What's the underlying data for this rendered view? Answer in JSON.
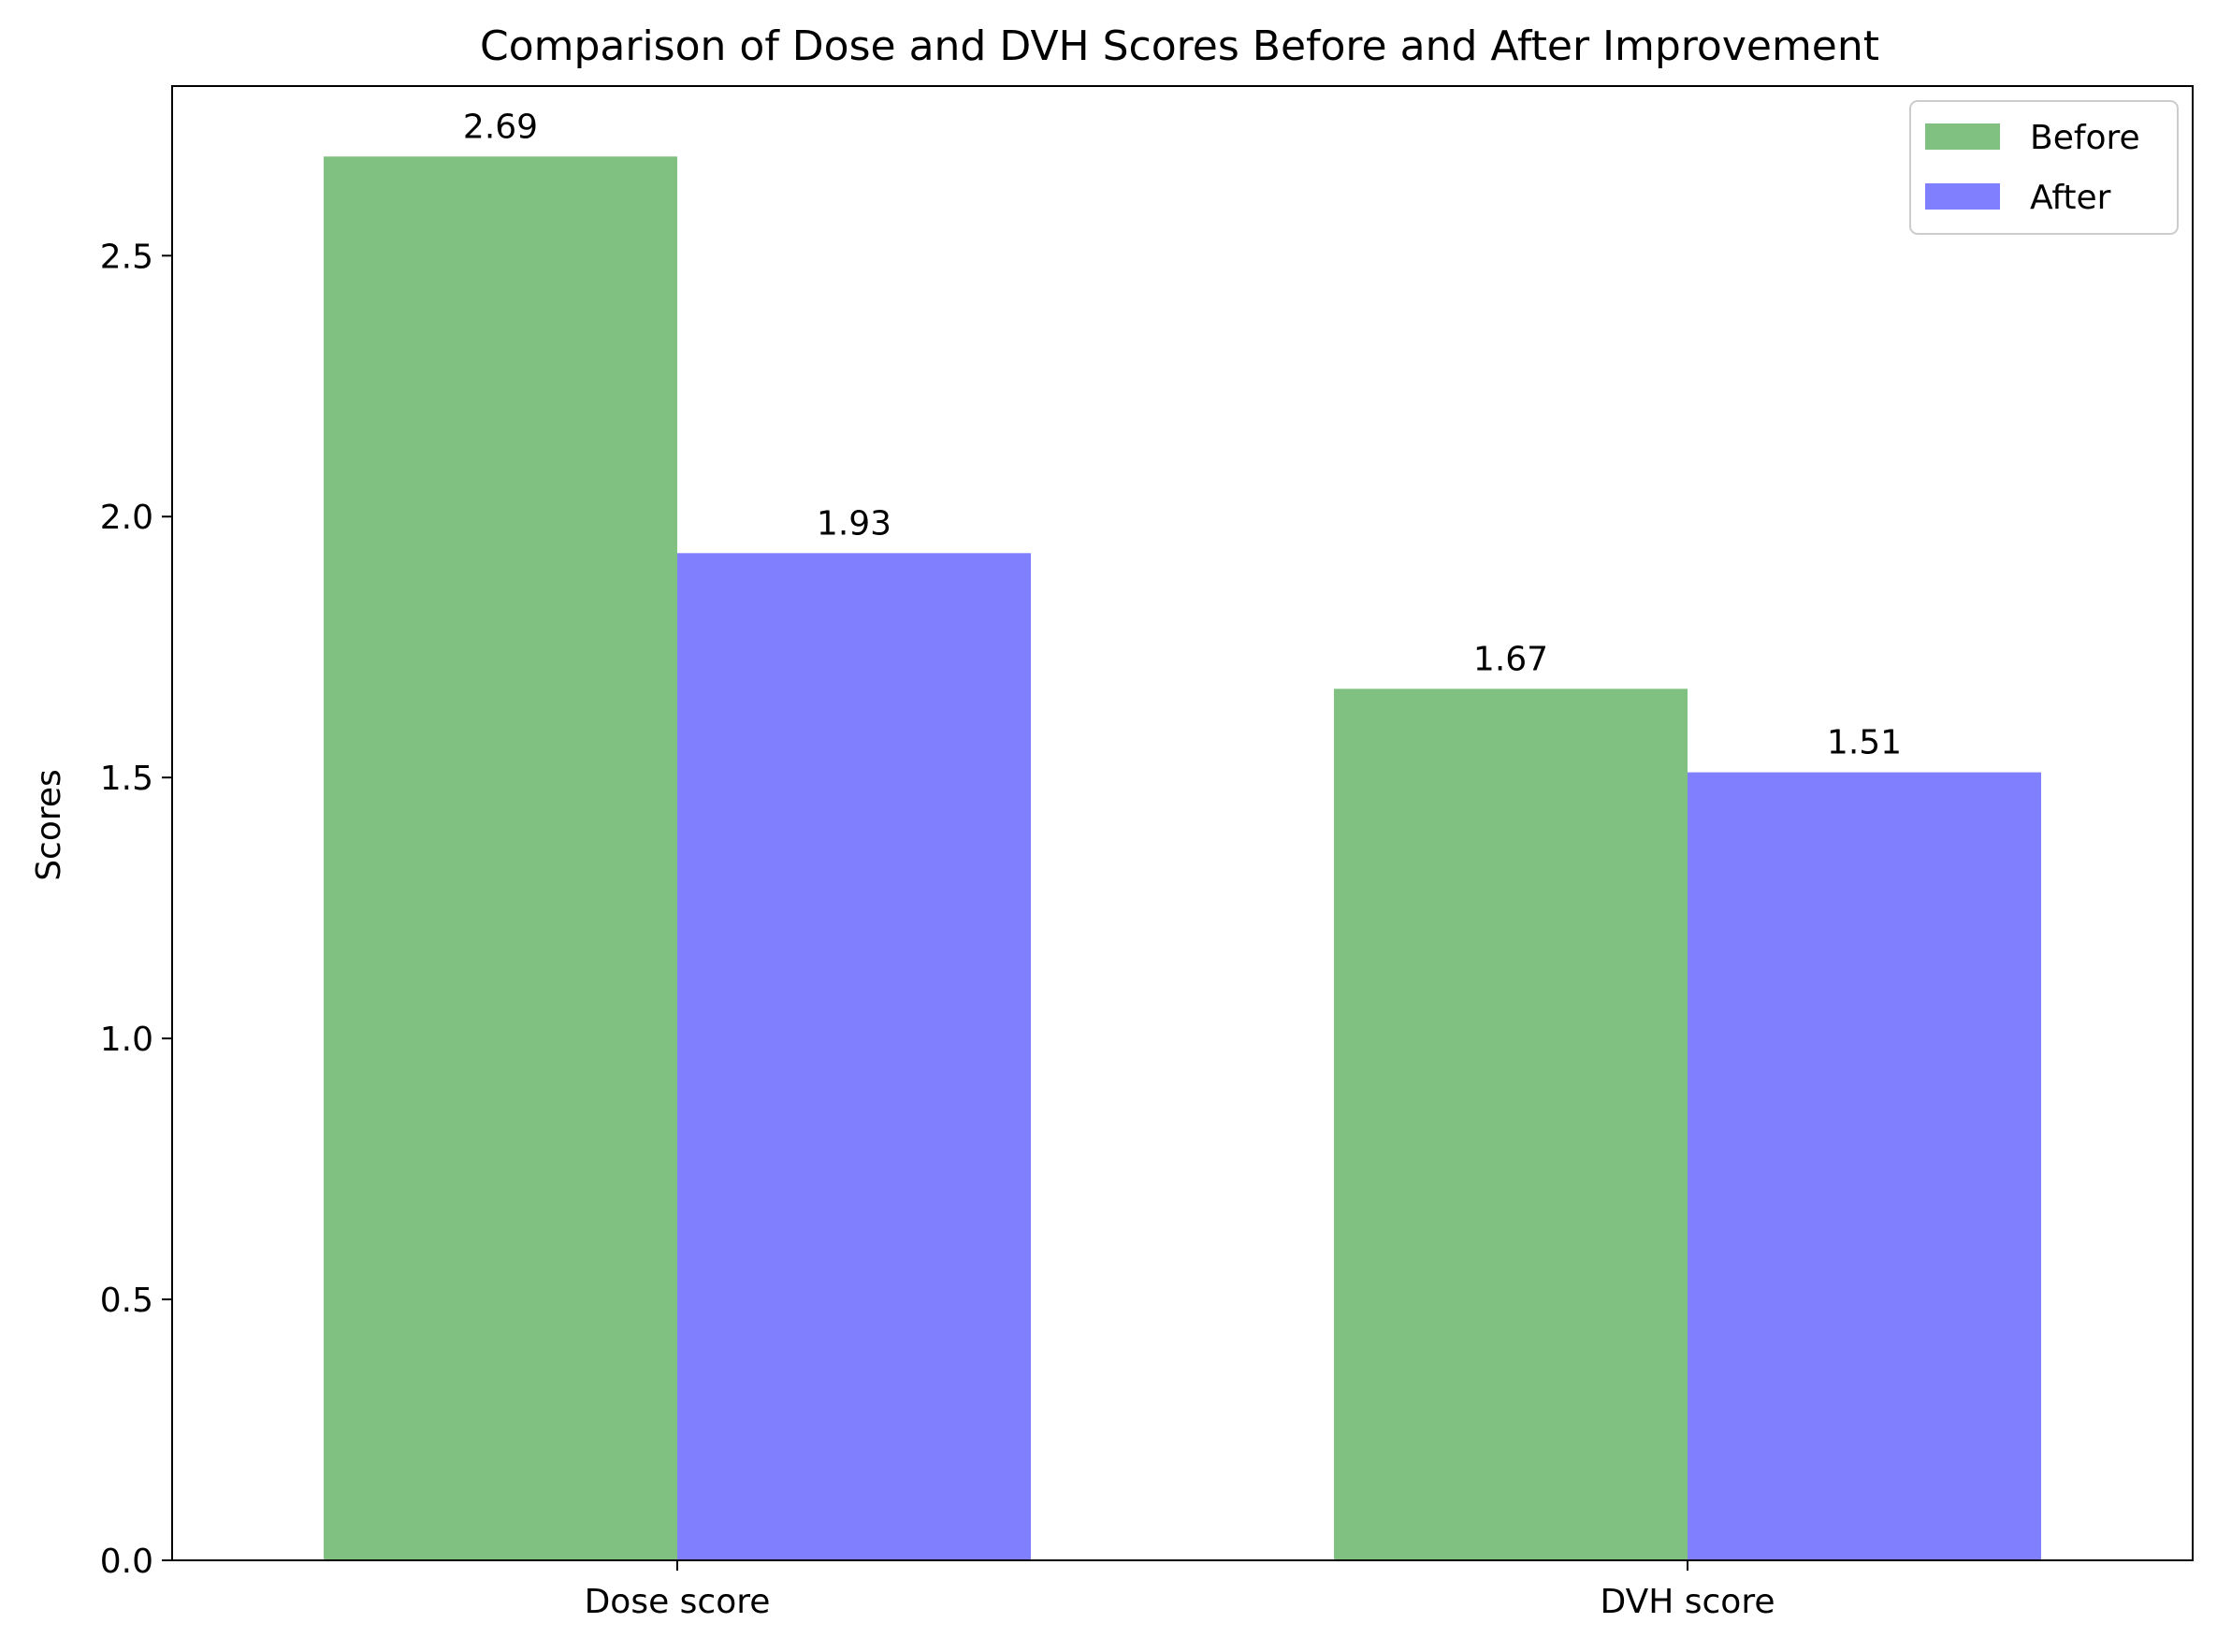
{
  "chart_data": {
    "type": "bar",
    "title": "Comparison of Dose and DVH Scores Before and After Improvement",
    "xlabel": "",
    "ylabel": "Scores",
    "categories": [
      "Dose score",
      "DVH score"
    ],
    "series": [
      {
        "name": "Before",
        "values": [
          2.69,
          1.67
        ],
        "color": "#80c080"
      },
      {
        "name": "After",
        "values": [
          1.93,
          1.51
        ],
        "color": "#8080ff"
      }
    ],
    "data_labels": [
      [
        "2.69",
        "1.67"
      ],
      [
        "1.93",
        "1.51"
      ]
    ],
    "ylim": [
      0,
      2.825
    ],
    "yticks": [
      0.0,
      0.5,
      1.0,
      1.5,
      2.0,
      2.5
    ],
    "ytick_labels": [
      "0.0",
      "0.5",
      "1.0",
      "1.5",
      "2.0",
      "2.5"
    ],
    "grid": false,
    "legend_position": "top-right"
  }
}
